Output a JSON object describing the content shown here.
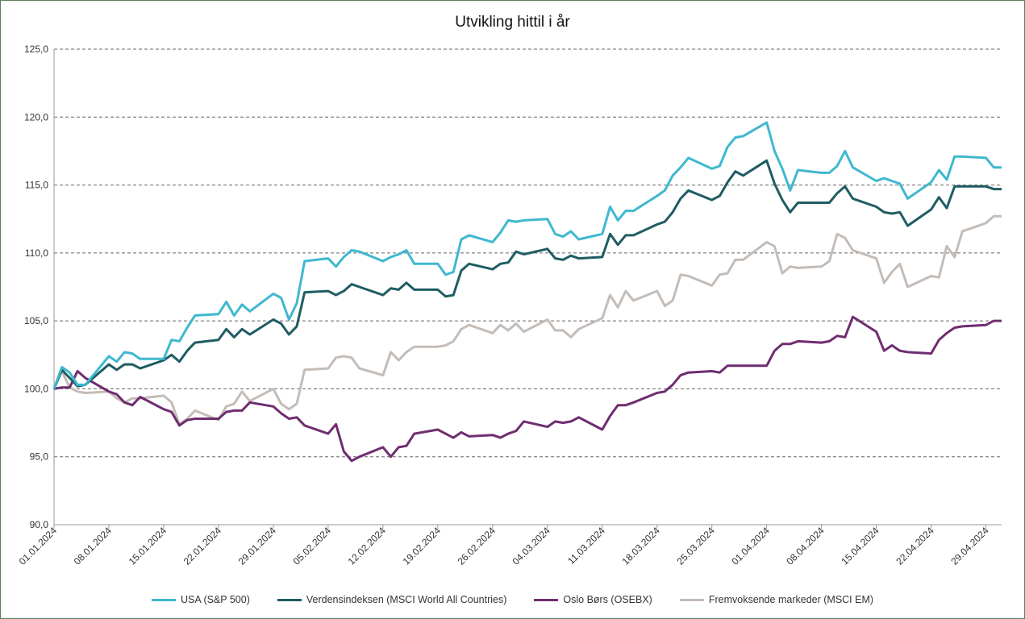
{
  "chart_data": {
    "type": "line",
    "title": "Utvikling hittil i år",
    "ylim": [
      90,
      125
    ],
    "yticks": [
      "90,0",
      "95,0",
      "100,0",
      "105,0",
      "110,0",
      "115,0",
      "120,0",
      "125,0"
    ],
    "ytick_values": [
      90,
      95,
      100,
      105,
      110,
      115,
      120,
      125
    ],
    "xticks": [
      "01.01.2024",
      "08.01.2024",
      "15.01.2024",
      "22.01.2024",
      "29.01.2024",
      "05.02.2024",
      "12.02.2024",
      "19.02.2024",
      "26.02.2024",
      "04.03.2024",
      "11.03.2024",
      "18.03.2024",
      "25.03.2024",
      "01.04.2024",
      "08.04.2024",
      "15.04.2024",
      "22.04.2024",
      "29.04.2024"
    ],
    "grid": true,
    "legend_position": "bottom",
    "series": [
      {
        "name": "USA (S&P 500)",
        "color": "#3fb8cf",
        "x": [
          "01.01.2024",
          "02.01.2024",
          "03.01.2024",
          "04.01.2024",
          "05.01.2024",
          "08.01.2024",
          "09.01.2024",
          "10.01.2024",
          "11.01.2024",
          "12.01.2024",
          "15.01.2024",
          "16.01.2024",
          "17.01.2024",
          "18.01.2024",
          "19.01.2024",
          "22.01.2024",
          "23.01.2024",
          "24.01.2024",
          "25.01.2024",
          "26.01.2024",
          "29.01.2024",
          "30.01.2024",
          "31.01.2024",
          "01.02.2024",
          "02.02.2024",
          "05.02.2024",
          "06.02.2024",
          "07.02.2024",
          "08.02.2024",
          "09.02.2024",
          "12.02.2024",
          "13.02.2024",
          "14.02.2024",
          "15.02.2024",
          "16.02.2024",
          "19.02.2024",
          "20.02.2024",
          "21.02.2024",
          "22.02.2024",
          "23.02.2024",
          "26.02.2024",
          "27.02.2024",
          "28.02.2024",
          "29.02.2024",
          "01.03.2024",
          "04.03.2024",
          "05.03.2024",
          "06.03.2024",
          "07.03.2024",
          "08.03.2024",
          "11.03.2024",
          "12.03.2024",
          "13.03.2024",
          "14.03.2024",
          "15.03.2024",
          "18.03.2024",
          "19.03.2024",
          "20.03.2024",
          "21.03.2024",
          "22.03.2024",
          "25.03.2024",
          "26.03.2024",
          "27.03.2024",
          "28.03.2024",
          "29.03.2024",
          "01.04.2024",
          "02.04.2024",
          "03.04.2024",
          "04.04.2024",
          "05.04.2024",
          "08.04.2024",
          "09.04.2024",
          "10.04.2024",
          "11.04.2024",
          "12.04.2024",
          "15.04.2024",
          "16.04.2024",
          "17.04.2024",
          "18.04.2024",
          "19.04.2024",
          "22.04.2024",
          "23.04.2024",
          "24.04.2024",
          "25.04.2024",
          "26.04.2024",
          "29.04.2024",
          "30.04.2024",
          "01.05.2024"
        ],
        "y": [
          100.0,
          101.6,
          101.2,
          100.3,
          100.3,
          102.4,
          102.0,
          102.7,
          102.6,
          102.2,
          102.2,
          103.6,
          103.5,
          104.5,
          105.4,
          105.5,
          106.4,
          105.4,
          106.2,
          105.7,
          107.0,
          106.7,
          105.1,
          106.3,
          109.4,
          109.6,
          109.0,
          109.7,
          110.2,
          110.1,
          109.4,
          109.7,
          109.9,
          110.2,
          109.2,
          109.2,
          108.4,
          108.6,
          111.0,
          111.3,
          110.8,
          111.5,
          112.4,
          112.3,
          112.4,
          112.5,
          111.4,
          111.2,
          111.6,
          111.0,
          111.4,
          113.4,
          112.4,
          113.1,
          113.1,
          114.2,
          114.6,
          115.7,
          116.3,
          117.0,
          116.2,
          116.4,
          117.8,
          118.5,
          118.6,
          119.6,
          117.5,
          116.2,
          114.6,
          116.1,
          115.9,
          115.9,
          116.4,
          117.5,
          116.3,
          115.3,
          115.5,
          115.3,
          115.1,
          114.0,
          115.2,
          116.1,
          115.4,
          117.1,
          117.1,
          117.0,
          116.3,
          116.3
        ]
      },
      {
        "name": "Verdensindeksen (MSCI World All Countries)",
        "color": "#1f5c63",
        "x": [
          "01.01.2024",
          "02.01.2024",
          "03.01.2024",
          "04.01.2024",
          "05.01.2024",
          "08.01.2024",
          "09.01.2024",
          "10.01.2024",
          "11.01.2024",
          "12.01.2024",
          "15.01.2024",
          "16.01.2024",
          "17.01.2024",
          "18.01.2024",
          "19.01.2024",
          "22.01.2024",
          "23.01.2024",
          "24.01.2024",
          "25.01.2024",
          "26.01.2024",
          "29.01.2024",
          "30.01.2024",
          "31.01.2024",
          "01.02.2024",
          "02.02.2024",
          "05.02.2024",
          "06.02.2024",
          "07.02.2024",
          "08.02.2024",
          "09.02.2024",
          "12.02.2024",
          "13.02.2024",
          "14.02.2024",
          "15.02.2024",
          "16.02.2024",
          "19.02.2024",
          "20.02.2024",
          "21.02.2024",
          "22.02.2024",
          "23.02.2024",
          "26.02.2024",
          "27.02.2024",
          "28.02.2024",
          "29.02.2024",
          "01.03.2024",
          "04.03.2024",
          "05.03.2024",
          "06.03.2024",
          "07.03.2024",
          "08.03.2024",
          "11.03.2024",
          "12.03.2024",
          "13.03.2024",
          "14.03.2024",
          "15.03.2024",
          "18.03.2024",
          "19.03.2024",
          "20.03.2024",
          "21.03.2024",
          "22.03.2024",
          "25.03.2024",
          "26.03.2024",
          "27.03.2024",
          "28.03.2024",
          "29.03.2024",
          "01.04.2024",
          "02.04.2024",
          "03.04.2024",
          "04.04.2024",
          "05.04.2024",
          "08.04.2024",
          "09.04.2024",
          "10.04.2024",
          "11.04.2024",
          "12.04.2024",
          "15.04.2024",
          "16.04.2024",
          "17.04.2024",
          "18.04.2024",
          "19.04.2024",
          "22.04.2024",
          "23.04.2024",
          "24.04.2024",
          "25.04.2024",
          "26.04.2024",
          "29.04.2024",
          "30.04.2024",
          "01.05.2024"
        ],
        "y": [
          100.0,
          101.4,
          100.8,
          100.2,
          100.3,
          101.8,
          101.4,
          101.8,
          101.8,
          101.5,
          102.1,
          102.5,
          102.0,
          102.8,
          103.4,
          103.6,
          104.4,
          103.8,
          104.4,
          104.0,
          105.1,
          104.8,
          104.0,
          104.6,
          107.1,
          107.2,
          106.9,
          107.2,
          107.7,
          107.5,
          106.9,
          107.4,
          107.3,
          107.8,
          107.3,
          107.3,
          106.8,
          106.9,
          108.7,
          109.2,
          108.8,
          109.2,
          109.3,
          110.1,
          109.9,
          110.3,
          109.6,
          109.5,
          109.8,
          109.6,
          109.7,
          111.4,
          110.6,
          111.3,
          111.3,
          112.1,
          112.3,
          113.0,
          114.0,
          114.6,
          113.9,
          114.2,
          115.2,
          116.0,
          115.7,
          116.8,
          115.1,
          113.9,
          113.0,
          113.7,
          113.7,
          113.7,
          114.4,
          114.9,
          114.0,
          113.4,
          113.0,
          112.9,
          113.0,
          112.0,
          113.2,
          114.1,
          113.3,
          114.9,
          114.9,
          114.9,
          114.7,
          114.7
        ]
      },
      {
        "name": "Oslo Børs (OSEBX)",
        "color": "#6f2d6f",
        "x": [
          "01.01.2024",
          "02.01.2024",
          "03.01.2024",
          "04.01.2024",
          "05.01.2024",
          "08.01.2024",
          "09.01.2024",
          "10.01.2024",
          "11.01.2024",
          "12.01.2024",
          "15.01.2024",
          "16.01.2024",
          "17.01.2024",
          "18.01.2024",
          "19.01.2024",
          "22.01.2024",
          "23.01.2024",
          "24.01.2024",
          "25.01.2024",
          "26.01.2024",
          "29.01.2024",
          "30.01.2024",
          "31.01.2024",
          "01.02.2024",
          "02.02.2024",
          "05.02.2024",
          "06.02.2024",
          "07.02.2024",
          "08.02.2024",
          "09.02.2024",
          "12.02.2024",
          "13.02.2024",
          "14.02.2024",
          "15.02.2024",
          "16.02.2024",
          "19.02.2024",
          "20.02.2024",
          "21.02.2024",
          "22.02.2024",
          "23.02.2024",
          "26.02.2024",
          "27.02.2024",
          "28.02.2024",
          "29.02.2024",
          "01.03.2024",
          "04.03.2024",
          "05.03.2024",
          "06.03.2024",
          "07.03.2024",
          "08.03.2024",
          "11.03.2024",
          "12.03.2024",
          "13.03.2024",
          "14.03.2024",
          "15.03.2024",
          "18.03.2024",
          "19.03.2024",
          "20.03.2024",
          "21.03.2024",
          "22.03.2024",
          "25.03.2024",
          "26.03.2024",
          "27.03.2024",
          "28.03.2024",
          "29.03.2024",
          "01.04.2024",
          "02.04.2024",
          "03.04.2024",
          "04.04.2024",
          "05.04.2024",
          "08.04.2024",
          "09.04.2024",
          "10.04.2024",
          "11.04.2024",
          "12.04.2024",
          "15.04.2024",
          "16.04.2024",
          "17.04.2024",
          "18.04.2024",
          "19.04.2024",
          "22.04.2024",
          "23.04.2024",
          "24.04.2024",
          "25.04.2024",
          "26.04.2024",
          "29.04.2024",
          "30.04.2024",
          "01.05.2024"
        ],
        "y": [
          100.0,
          100.1,
          100.1,
          101.3,
          100.8,
          99.8,
          99.6,
          99.0,
          98.8,
          99.4,
          98.5,
          98.3,
          97.3,
          97.7,
          97.8,
          97.8,
          98.3,
          98.4,
          98.4,
          99.0,
          98.7,
          98.2,
          97.8,
          97.9,
          97.3,
          96.7,
          97.4,
          95.4,
          94.7,
          95.0,
          95.7,
          95.0,
          95.7,
          95.8,
          96.7,
          97.0,
          96.7,
          96.4,
          96.8,
          96.5,
          96.6,
          96.4,
          96.7,
          96.9,
          97.6,
          97.2,
          97.6,
          97.5,
          97.6,
          97.9,
          97.0,
          98.0,
          98.8,
          98.8,
          99.0,
          99.7,
          99.8,
          100.3,
          101.0,
          101.2,
          101.3,
          101.2,
          101.7,
          101.7,
          101.7,
          101.7,
          102.8,
          103.3,
          103.3,
          103.5,
          103.4,
          103.5,
          103.9,
          103.8,
          105.3,
          104.2,
          102.8,
          103.2,
          102.8,
          102.7,
          102.6,
          103.6,
          104.1,
          104.5,
          104.6,
          104.7,
          105.0,
          105.0
        ]
      },
      {
        "name": "Fremvoksende markeder (MSCI EM)",
        "color": "#c4bcb7",
        "x": [
          "01.01.2024",
          "02.01.2024",
          "03.01.2024",
          "04.01.2024",
          "05.01.2024",
          "08.01.2024",
          "09.01.2024",
          "10.01.2024",
          "11.01.2024",
          "12.01.2024",
          "15.01.2024",
          "16.01.2024",
          "17.01.2024",
          "18.01.2024",
          "19.01.2024",
          "22.01.2024",
          "23.01.2024",
          "24.01.2024",
          "25.01.2024",
          "26.01.2024",
          "29.01.2024",
          "30.01.2024",
          "31.01.2024",
          "01.02.2024",
          "02.02.2024",
          "05.02.2024",
          "06.02.2024",
          "07.02.2024",
          "08.02.2024",
          "09.02.2024",
          "12.02.2024",
          "13.02.2024",
          "14.02.2024",
          "15.02.2024",
          "16.02.2024",
          "19.02.2024",
          "20.02.2024",
          "21.02.2024",
          "22.02.2024",
          "23.02.2024",
          "26.02.2024",
          "27.02.2024",
          "28.02.2024",
          "29.02.2024",
          "01.03.2024",
          "04.03.2024",
          "05.03.2024",
          "06.03.2024",
          "07.03.2024",
          "08.03.2024",
          "11.03.2024",
          "12.03.2024",
          "13.03.2024",
          "14.03.2024",
          "15.03.2024",
          "18.03.2024",
          "19.03.2024",
          "20.03.2024",
          "21.03.2024",
          "22.03.2024",
          "25.03.2024",
          "26.03.2024",
          "27.03.2024",
          "28.03.2024",
          "29.03.2024",
          "01.04.2024",
          "02.04.2024",
          "03.04.2024",
          "04.04.2024",
          "05.04.2024",
          "08.04.2024",
          "09.04.2024",
          "10.04.2024",
          "11.04.2024",
          "12.04.2024",
          "15.04.2024",
          "16.04.2024",
          "17.04.2024",
          "18.04.2024",
          "19.04.2024",
          "22.04.2024",
          "23.04.2024",
          "24.04.2024",
          "25.04.2024",
          "26.04.2024",
          "29.04.2024",
          "30.04.2024",
          "01.05.2024"
        ],
        "y": [
          100.0,
          101.3,
          100.1,
          99.8,
          99.7,
          99.8,
          99.3,
          99.0,
          99.3,
          99.3,
          99.5,
          99.0,
          97.4,
          97.8,
          98.4,
          97.7,
          98.7,
          98.9,
          99.8,
          99.1,
          100.0,
          98.9,
          98.5,
          98.9,
          101.4,
          101.5,
          102.3,
          102.4,
          102.3,
          101.5,
          101.0,
          102.7,
          102.1,
          102.7,
          103.1,
          103.1,
          103.2,
          103.5,
          104.4,
          104.7,
          104.1,
          104.7,
          104.3,
          104.8,
          104.2,
          105.1,
          104.3,
          104.3,
          103.8,
          104.4,
          105.2,
          106.9,
          106.0,
          107.2,
          106.5,
          107.2,
          106.1,
          106.5,
          108.4,
          108.3,
          107.6,
          108.4,
          108.5,
          109.5,
          109.5,
          110.8,
          110.5,
          108.5,
          109.0,
          108.9,
          109.0,
          109.4,
          111.4,
          111.1,
          110.2,
          109.6,
          107.8,
          108.6,
          109.2,
          107.5,
          108.3,
          108.2,
          110.5,
          109.7,
          111.6,
          112.2,
          112.7,
          112.7
        ]
      }
    ]
  }
}
